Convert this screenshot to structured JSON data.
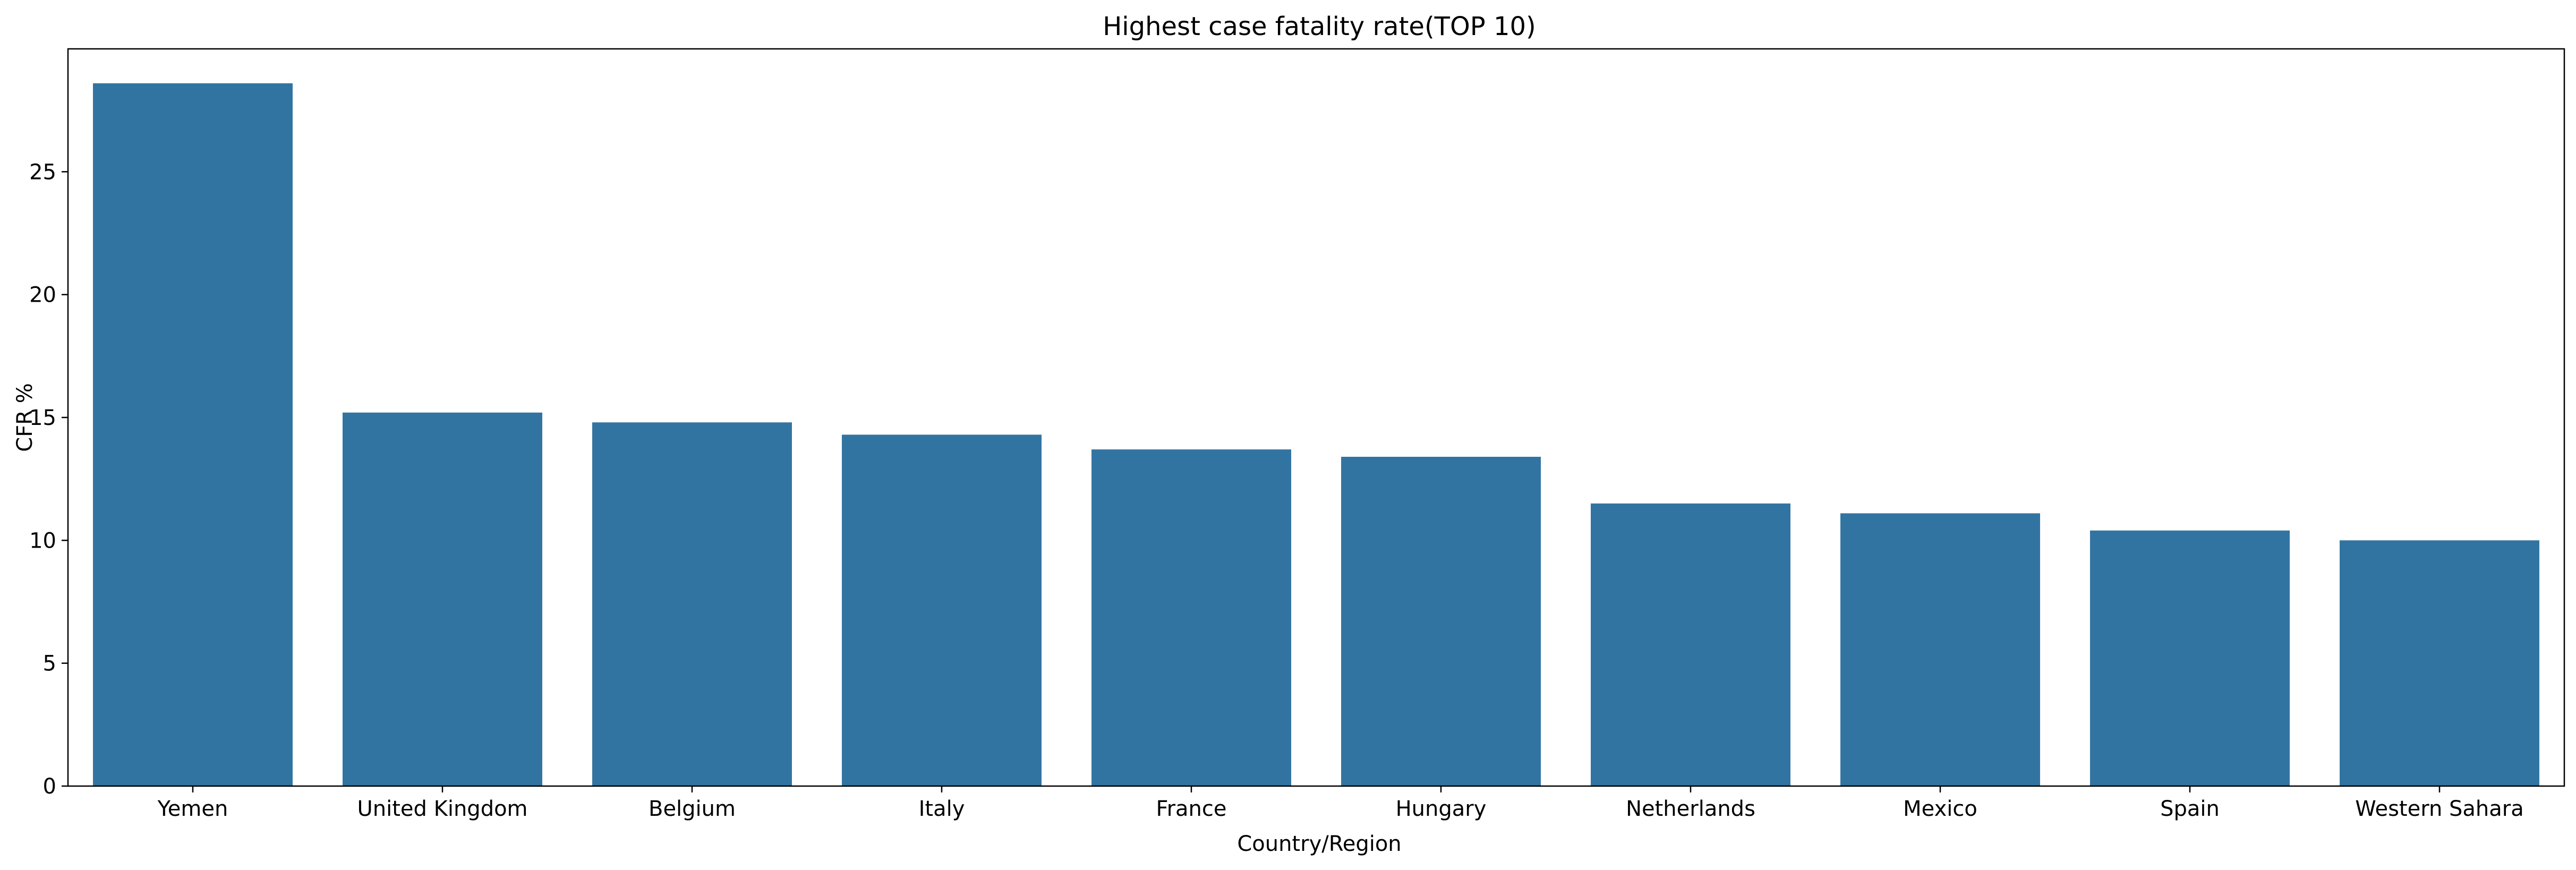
{
  "chart_data": {
    "type": "bar",
    "title": "Highest case fatality rate(TOP 10)",
    "xlabel": "Country/Region",
    "ylabel": "CFR %",
    "categories": [
      "Yemen",
      "United Kingdom",
      "Belgium",
      "Italy",
      "France",
      "Hungary",
      "Netherlands",
      "Mexico",
      "Spain",
      "Western Sahara"
    ],
    "values": [
      28.6,
      15.2,
      14.8,
      14.3,
      13.7,
      13.4,
      11.5,
      11.1,
      10.4,
      10.0
    ],
    "ylim": [
      0,
      30
    ],
    "yticks": [
      0,
      5,
      10,
      15,
      20,
      25
    ],
    "bar_color": "#3274a1",
    "grid": false,
    "legend": "none"
  }
}
